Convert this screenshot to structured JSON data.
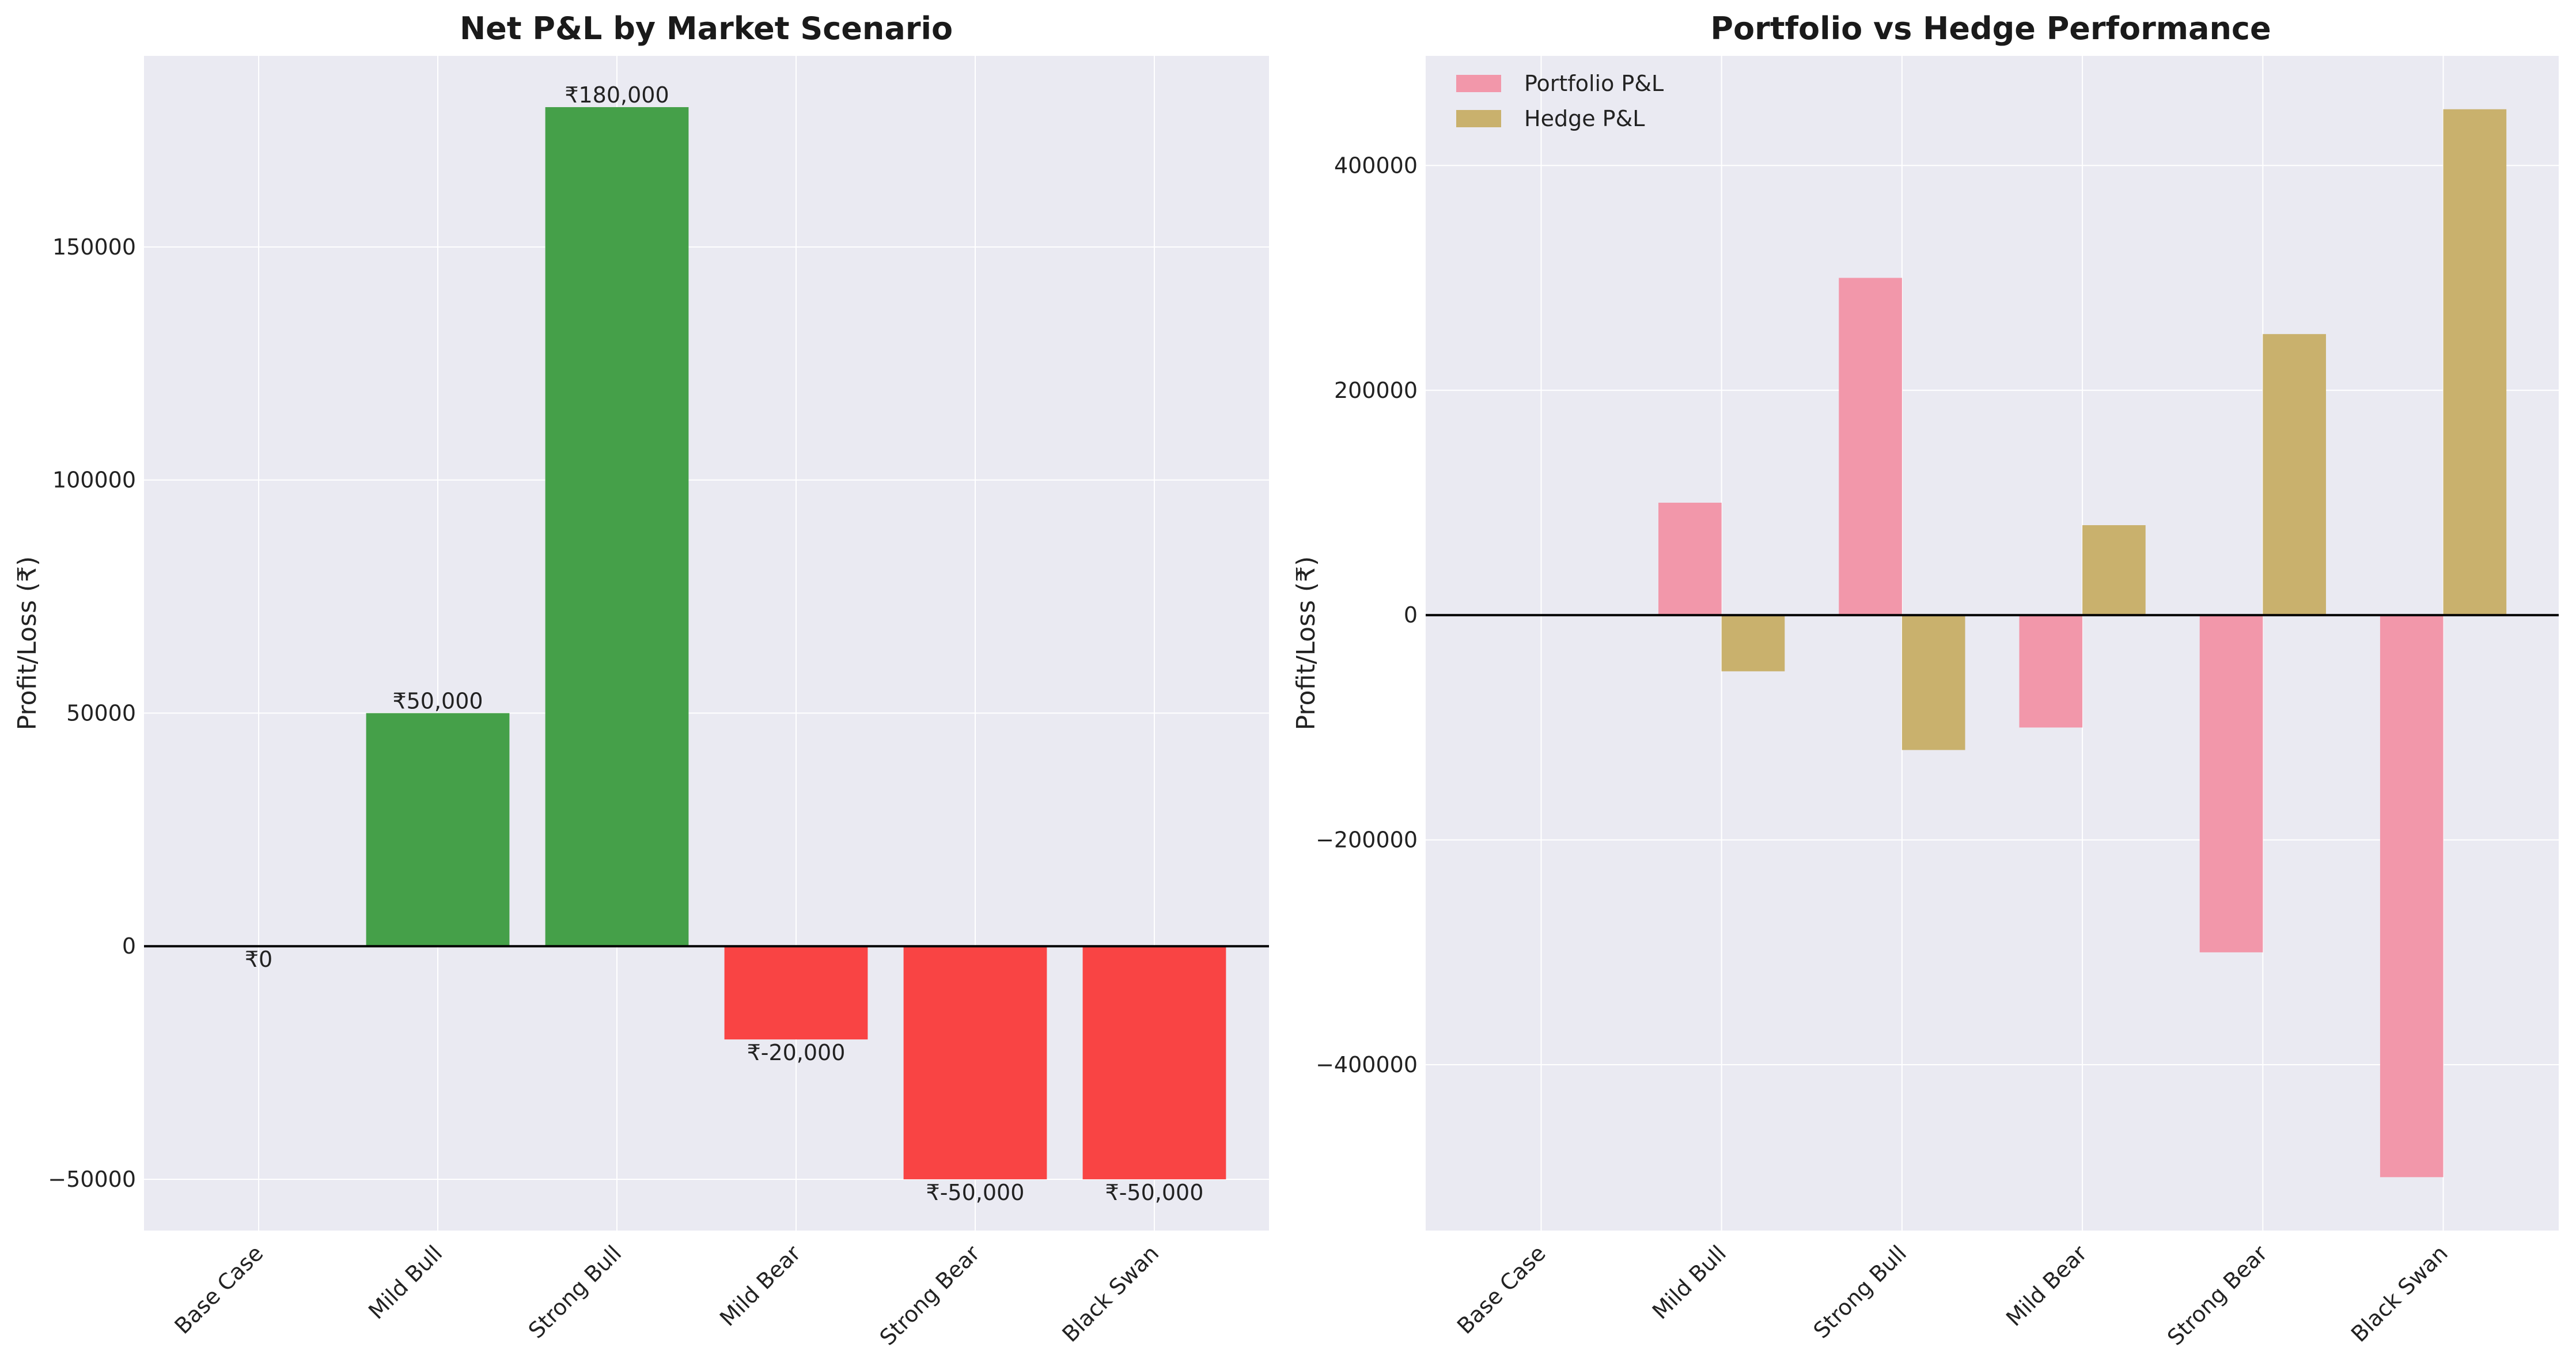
{
  "chart_data": [
    {
      "type": "bar",
      "title": "Net P&L by Market Scenario",
      "ylabel": "Profit/Loss (₹)",
      "xlabel": "",
      "categories": [
        "Base Case",
        "Mild Bull",
        "Strong Bull",
        "Mild Bear",
        "Strong Bear",
        "Black Swan"
      ],
      "values": [
        0,
        50000,
        180000,
        -20000,
        -50000,
        -50000
      ],
      "data_labels": [
        "₹0",
        "₹50,000",
        "₹180,000",
        "₹-20,000",
        "₹-50,000",
        "₹-50,000"
      ],
      "yticks": [
        -50000,
        0,
        50000,
        100000,
        150000
      ],
      "ytick_labels": [
        "−50000",
        "0",
        "50000",
        "100000",
        "150000"
      ],
      "ylim": [
        -61000,
        191000
      ],
      "positive_color": "#45a049",
      "negative_color": "#f94444",
      "grid": true,
      "zero_line": true
    },
    {
      "type": "bar",
      "title": "Portfolio vs Hedge Performance",
      "ylabel": "Profit/Loss (₹)",
      "xlabel": "",
      "categories": [
        "Base Case",
        "Mild Bull",
        "Strong Bull",
        "Mild Bear",
        "Strong Bear",
        "Black Swan"
      ],
      "series": [
        {
          "name": "Portfolio P&L",
          "values": [
            0,
            100000,
            300000,
            -100000,
            -300000,
            -500000
          ],
          "color": "#f297aa"
        },
        {
          "name": "Hedge P&L",
          "values": [
            0,
            -50000,
            -120000,
            80000,
            250000,
            450000
          ],
          "color": "#c9b16d"
        }
      ],
      "yticks": [
        -400000,
        -200000,
        0,
        200000,
        400000
      ],
      "ytick_labels": [
        "−400000",
        "−200000",
        "0",
        "200000",
        "400000"
      ],
      "ylim": [
        -547500,
        497500
      ],
      "legend": "top-left",
      "grid": true,
      "zero_line": true
    }
  ]
}
